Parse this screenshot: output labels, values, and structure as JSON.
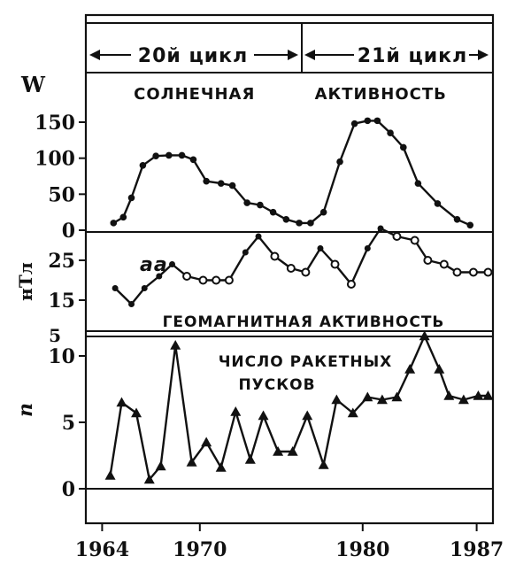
{
  "cycles": {
    "left": "20й цикл",
    "right": "21й цикл"
  },
  "chart_data": [
    {
      "type": "line",
      "title": "СОЛНЕЧНАЯ АКТИВНОСТЬ",
      "ylabel": "W",
      "ylim": [
        0,
        190
      ],
      "yticks": [
        0,
        50,
        100,
        150
      ],
      "marker": "filled-circle",
      "x": [
        1964.7,
        1965.3,
        1965.8,
        1966.5,
        1967.3,
        1968.1,
        1968.9,
        1969.6,
        1970.4,
        1971.3,
        1972.0,
        1972.9,
        1973.7,
        1974.5,
        1975.3,
        1976.1,
        1976.8,
        1977.6,
        1978.6,
        1979.5,
        1980.3,
        1980.9,
        1981.7,
        1982.5,
        1983.4,
        1984.6,
        1985.8,
        1986.6
      ],
      "y": [
        10,
        18,
        45,
        90,
        103,
        104,
        104,
        98,
        68,
        65,
        62,
        38,
        35,
        25,
        15,
        10,
        10,
        25,
        95,
        148,
        152,
        152,
        135,
        115,
        65,
        37,
        15,
        7
      ]
    },
    {
      "type": "line",
      "series_label": "aa",
      "xlabel": "ГЕОМАГНИТНАЯ АКТИВНОСТЬ",
      "ylabel": "нТл",
      "ylim": [
        10,
        35
      ],
      "yticks": [
        15,
        25
      ],
      "x": [
        1964.8,
        1965.8,
        1966.6,
        1967.5,
        1968.3,
        1969.2,
        1970.2,
        1971.0,
        1971.8,
        1972.8,
        1973.6,
        1974.6,
        1975.6,
        1976.5,
        1977.4,
        1978.3,
        1979.3,
        1980.3,
        1981.1,
        1982.1,
        1983.2,
        1984.0,
        1985.0,
        1985.8,
        1986.8,
        1987.7
      ],
      "y": [
        18,
        14,
        18,
        21,
        24,
        21,
        20,
        20,
        20,
        27,
        31,
        26,
        23,
        22,
        28,
        24,
        19,
        28,
        33,
        31,
        30,
        25,
        24,
        22,
        22,
        22
      ],
      "marker": [
        "dot",
        "dot",
        "dot",
        "dot",
        "dot",
        "open",
        "open",
        "open",
        "open",
        "dot",
        "dot",
        "open",
        "open",
        "open",
        "dot",
        "open",
        "open",
        "dot",
        "dot",
        "open",
        "open",
        "open",
        "open",
        "open",
        "open",
        "open"
      ]
    },
    {
      "type": "line",
      "title": "ЧИСЛО РАКЕТНЫХ ПУСКОВ",
      "ylabel": "n",
      "ylim": [
        -3,
        12
      ],
      "yticks": [
        0,
        5,
        10
      ],
      "marker": "filled-triangle",
      "x": [
        1964.5,
        1965.2,
        1966.1,
        1966.9,
        1967.6,
        1968.5,
        1969.5,
        1970.4,
        1971.3,
        1972.2,
        1973.1,
        1973.9,
        1974.8,
        1975.7,
        1976.6,
        1977.6,
        1978.4,
        1979.4,
        1980.3,
        1981.2,
        1982.1,
        1982.9,
        1983.8,
        1984.7,
        1985.3,
        1986.2,
        1987.1,
        1987.7
      ],
      "y": [
        1,
        6.5,
        5.7,
        0.7,
        1.7,
        10.8,
        2,
        3.5,
        1.6,
        5.8,
        2.2,
        5.5,
        2.8,
        2.8,
        5.5,
        1.8,
        6.7,
        5.7,
        6.9,
        6.7,
        6.9,
        9,
        11.5,
        9,
        7,
        6.7,
        7,
        7
      ]
    }
  ],
  "xaxis": {
    "ticks": [
      1964,
      1970,
      1980,
      1987
    ],
    "tick_labels": [
      "1964",
      "1970",
      "1980",
      "1987"
    ]
  },
  "side_labels": [
    "5"
  ]
}
